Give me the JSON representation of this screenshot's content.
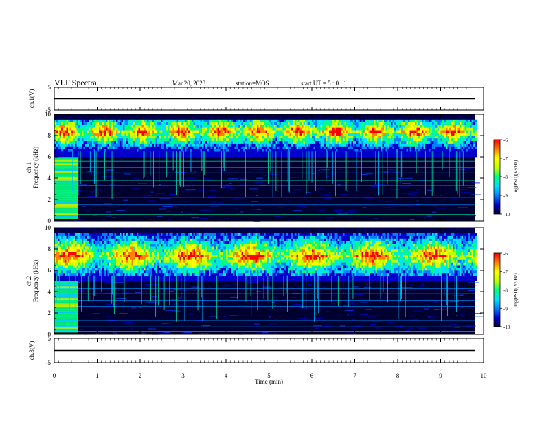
{
  "header": {
    "title": "VLF Spectra",
    "date": "Mar.20, 2023",
    "station": "station=MOS",
    "start": "start  UT =   5 : 0  : 1"
  },
  "colors": {
    "spectrogram_scale": [
      "#000033",
      "#0000cc",
      "#0080ff",
      "#00e0ff",
      "#00ff80",
      "#c0ff00",
      "#ffff00",
      "#ff8000",
      "#ff0000"
    ],
    "trace": "#000000"
  },
  "chart_data": [
    {
      "type": "line",
      "panel": "ch1-waveform",
      "ylabel": "ch.1(V)",
      "ylim": [
        -5,
        5
      ],
      "yticks": [
        "5",
        "-5"
      ],
      "x": [
        0,
        9.8
      ],
      "values": [
        0,
        0
      ]
    },
    {
      "type": "heatmap",
      "panel": "ch1-spectrogram",
      "ylabel": "ch.1\nFrequency (kHz)",
      "ylim": [
        0,
        10
      ],
      "yticks": [
        "0",
        "2",
        "4",
        "6",
        "8",
        "10"
      ],
      "xlim": [
        0,
        10
      ],
      "data_extent_min": 9.8,
      "dominant_band_khz": [
        6,
        9.5
      ],
      "peak_band_khz": [
        7.5,
        9
      ],
      "broadband_burst_min": [
        0,
        0.55
      ],
      "colorbar": {
        "label": "log(PSD)(V²/Hz)",
        "range": [
          -10,
          -6
        ],
        "ticks": [
          "-6",
          "-7",
          "-8",
          "-9",
          "-10"
        ]
      }
    },
    {
      "type": "heatmap",
      "panel": "ch2-spectrogram",
      "ylabel": "ch.2\nFrequency (kHz)",
      "ylim": [
        0,
        10
      ],
      "yticks": [
        "0",
        "2",
        "4",
        "6",
        "8",
        "10"
      ],
      "xlim": [
        0,
        10
      ],
      "data_extent_min": 9.8,
      "dominant_band_khz": [
        5,
        9.5
      ],
      "peak_band_khz": [
        6,
        8.5
      ],
      "broadband_burst_min": [
        0,
        0.55
      ],
      "colorbar": {
        "label": "log(PSD)(V²/Hz)",
        "range": [
          -10,
          -6
        ],
        "ticks": [
          "-6",
          "-7",
          "-8",
          "-9",
          "-10"
        ]
      }
    },
    {
      "type": "line",
      "panel": "ch3-waveform",
      "ylabel": "ch.3(V)",
      "ylim": [
        -5,
        5
      ],
      "yticks": [
        "5",
        "-5"
      ],
      "x": [
        0,
        9.8
      ],
      "values": [
        0,
        0
      ],
      "xlabel": "Time (min)",
      "xlim": [
        0,
        10
      ],
      "xticks": [
        "0",
        "1",
        "2",
        "3",
        "4",
        "5",
        "6",
        "7",
        "8",
        "9",
        "10"
      ]
    }
  ]
}
